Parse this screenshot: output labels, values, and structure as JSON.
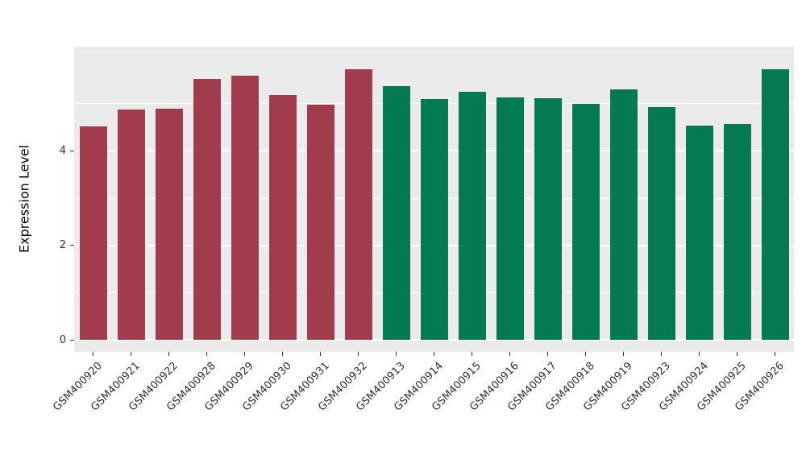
{
  "chart_data": {
    "type": "bar",
    "title": "",
    "xlabel": "",
    "ylabel": "Expression Level",
    "ylim": [
      0,
      5.95
    ],
    "yticks": [
      0,
      2,
      4
    ],
    "yticks_minor": [
      1,
      3,
      5
    ],
    "grid": "on",
    "legend_position": "none",
    "categories": [
      "GSM400920",
      "GSM400921",
      "GSM400922",
      "GSM400928",
      "GSM400929",
      "GSM400930",
      "GSM400931",
      "GSM400932",
      "GSM400913",
      "GSM400914",
      "GSM400915",
      "GSM400916",
      "GSM400917",
      "GSM400918",
      "GSM400919",
      "GSM400923",
      "GSM400924",
      "GSM400925",
      "GSM400926"
    ],
    "values": [
      4.51,
      4.88,
      4.9,
      5.52,
      5.6,
      5.19,
      4.97,
      5.73,
      5.37,
      5.1,
      5.25,
      5.13,
      5.12,
      5.0,
      5.31,
      4.93,
      4.54,
      4.57,
      5.73
    ],
    "groups": [
      "maroon",
      "maroon",
      "maroon",
      "maroon",
      "maroon",
      "maroon",
      "maroon",
      "maroon",
      "green",
      "green",
      "green",
      "green",
      "green",
      "green",
      "green",
      "green",
      "green",
      "green",
      "green"
    ],
    "group_colors": {
      "maroon": "#a03c4e",
      "green": "#037a50"
    },
    "panel_background": "#ebebeb",
    "grid_color": "#ffffff",
    "axis_text_color": "#303030"
  }
}
